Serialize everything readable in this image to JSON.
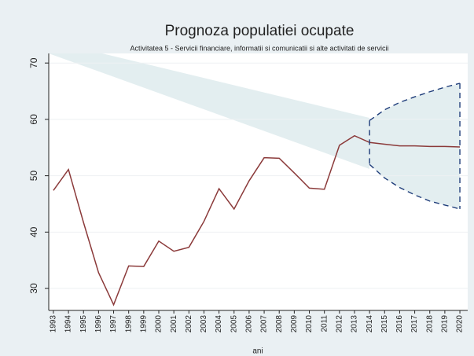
{
  "chart_data": {
    "type": "line",
    "title": "Prognoza populatiei ocupate",
    "subtitle": "Activitatea 5 - Servicii financiare, informatii si comunicatii si alte activitati de servicii",
    "x_label": "ani",
    "x": [
      1993,
      1994,
      1995,
      1996,
      1997,
      1998,
      1999,
      2000,
      2001,
      2002,
      2003,
      2004,
      2005,
      2006,
      2007,
      2008,
      2009,
      2010,
      2011,
      2012,
      2013,
      2014,
      2015,
      2016,
      2017,
      2018,
      2019,
      2020
    ],
    "series": [
      {
        "color": "#8b3a3a",
        "style": "solid",
        "values": [
          47.4,
          51.1,
          41.7,
          32.8,
          27.1,
          34.0,
          33.9,
          38.4,
          36.6,
          37.3,
          41.9,
          47.7,
          44.1,
          49.1,
          53.2,
          53.1,
          50.5,
          47.8,
          47.6,
          55.4,
          57.1,
          55.9,
          55.6,
          55.3,
          55.3,
          55.2,
          55.2,
          55.1
        ]
      },
      {
        "color": "#1f3d7a",
        "style": "dashed",
        "values": [
          null,
          null,
          null,
          null,
          null,
          null,
          null,
          null,
          null,
          null,
          null,
          null,
          null,
          null,
          null,
          null,
          null,
          null,
          null,
          null,
          null,
          59.8,
          61.7,
          63.0,
          64.0,
          64.9,
          65.7,
          66.4
        ]
      },
      {
        "color": "#1f3d7a",
        "style": "dashed",
        "values": [
          null,
          null,
          null,
          null,
          null,
          null,
          null,
          null,
          null,
          null,
          null,
          null,
          null,
          null,
          null,
          null,
          null,
          null,
          null,
          null,
          null,
          52.0,
          49.6,
          47.9,
          46.6,
          45.5,
          44.8,
          44.1
        ]
      }
    ],
    "band_color": "#e3eef0",
    "xlim": [
      1992.69,
      2020.52
    ],
    "xticks": [
      1993,
      1994,
      1995,
      1996,
      1997,
      1998,
      1999,
      2000,
      2001,
      2002,
      2003,
      2004,
      2005,
      2006,
      2007,
      2008,
      2009,
      2010,
      2011,
      2012,
      2013,
      2014,
      2015,
      2016,
      2017,
      2018,
      2019,
      2020
    ],
    "ylim": [
      26.1,
      71.7
    ],
    "yticks": [
      30,
      40,
      50,
      60,
      70
    ],
    "grid": true
  }
}
